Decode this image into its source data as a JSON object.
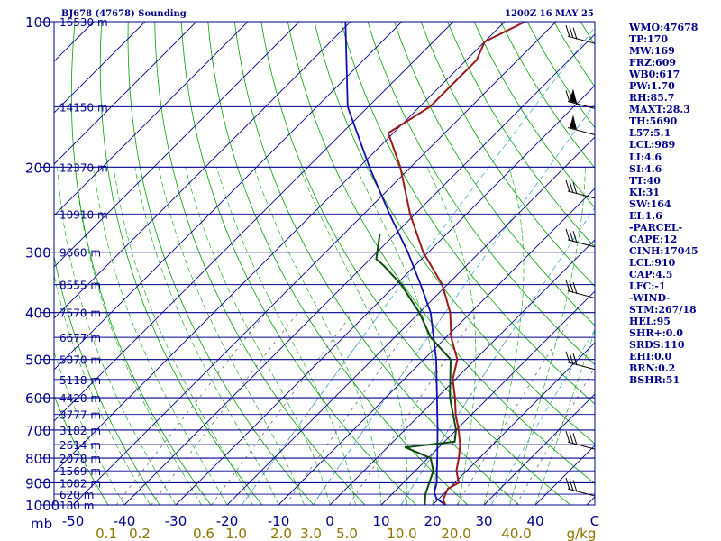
{
  "header": {
    "station": "BJ678 (47678) Sounding",
    "time": "1200Z 16 MAY 25"
  },
  "indices": [
    "WMO:47678",
    "TP:170",
    "MW:169",
    "FRZ:609",
    "WB0:617",
    "PW:1.70",
    "RH:85.7",
    "MAXT:28.3",
    "TH:5690",
    "L57:5.1",
    "LCL:989",
    "LI:4.6",
    "SI:4.6",
    "TT:40",
    "KI:31",
    "SW:164",
    "EI:1.6",
    "-PARCEL-",
    "CAPE:12",
    "CINH:17045",
    "LCL:910",
    "CAP:4.5",
    "LFC:-1",
    "-WIND-",
    "STM:267/18",
    "HEL:95",
    "SHR+:0.0",
    "SRDS:110",
    "EHI:0.0",
    "BRN:0.2",
    "BSHR:51"
  ],
  "colors": {
    "isobar": "#00008b",
    "isotherm": "#00008b",
    "dry_adiabat": "#00a000",
    "moist_adiabat": "#00a000",
    "mixing_ratio": "#555555",
    "dewpoint_isopleth": "#3fa9d8",
    "temperature": "#9b1b1b",
    "dewpoint": "#0b4a0b",
    "parcel": "#1010b0",
    "axis_text": "#00008b",
    "mixing_text": "#8b7500"
  },
  "chart_data": {
    "type": "line",
    "diagram": "skew-T log-p",
    "title": "BJ678 (47678) Sounding",
    "subtitle": "1200Z 16 MAY 25",
    "xlabel": "",
    "ylabel": "mb",
    "x_unit_label": "C",
    "mixing_unit_label": "g/kg",
    "xlim": [
      -50,
      50
    ],
    "ylim": [
      1000,
      100
    ],
    "pressure_ticks": [
      100,
      200,
      300,
      400,
      500,
      600,
      700,
      800,
      900,
      1000
    ],
    "temperature_ticks": [
      "-50",
      "-40",
      "-30",
      "-20",
      "-10",
      "0",
      "10",
      "20",
      "30",
      "40"
    ],
    "mixing_ratio_ticks": [
      "0.1",
      "0.2",
      "0.6",
      "1.0",
      "2.0",
      "3.0",
      "5.0",
      "10.0",
      "20.0",
      "40.0"
    ],
    "height_ticks": [
      {
        "p": 100,
        "label": "16530 m"
      },
      {
        "p": 150,
        "label": "14150 m"
      },
      {
        "p": 200,
        "label": "12370 m"
      },
      {
        "p": 250,
        "label": "10910 m"
      },
      {
        "p": 300,
        "label": "9660 m"
      },
      {
        "p": 350,
        "label": "8555 m"
      },
      {
        "p": 400,
        "label": "7570 m"
      },
      {
        "p": 450,
        "label": "6677 m"
      },
      {
        "p": 500,
        "label": "5870 m"
      },
      {
        "p": 550,
        "label": "5118 m"
      },
      {
        "p": 600,
        "label": "4420 m"
      },
      {
        "p": 650,
        "label": "3777 m"
      },
      {
        "p": 700,
        "label": "3182 m"
      },
      {
        "p": 750,
        "label": "2614 m"
      },
      {
        "p": 800,
        "label": "2078 m"
      },
      {
        "p": 850,
        "label": "1569 m"
      },
      {
        "p": 900,
        "label": "1082 m"
      },
      {
        "p": 950,
        "label": "620 m"
      },
      {
        "p": 1000,
        "label": "180 m"
      }
    ],
    "series": [
      {
        "key": "temperature",
        "points": [
          {
            "p": 1000,
            "t": 22.5
          },
          {
            "p": 975,
            "t": 21.0
          },
          {
            "p": 925,
            "t": 19.8
          },
          {
            "p": 900,
            "t": 20.8
          },
          {
            "p": 850,
            "t": 18.0
          },
          {
            "p": 800,
            "t": 16.0
          },
          {
            "p": 750,
            "t": 13.6
          },
          {
            "p": 700,
            "t": 10.5
          },
          {
            "p": 650,
            "t": 6.9
          },
          {
            "p": 600,
            "t": 3.5
          },
          {
            "p": 550,
            "t": -0.5
          },
          {
            "p": 500,
            "t": -3.5
          },
          {
            "p": 450,
            "t": -9.0
          },
          {
            "p": 400,
            "t": -14.0
          },
          {
            "p": 350,
            "t": -21.0
          },
          {
            "p": 300,
            "t": -31.0
          },
          {
            "p": 250,
            "t": -41.0
          },
          {
            "p": 200,
            "t": -52.0
          },
          {
            "p": 170,
            "t": -61.0
          },
          {
            "p": 150,
            "t": -58.0
          },
          {
            "p": 120,
            "t": -58.0
          },
          {
            "p": 110,
            "t": -60.0
          },
          {
            "p": 100,
            "t": -56.0
          }
        ]
      },
      {
        "key": "dewpoint",
        "points": [
          {
            "p": 1000,
            "t": 18.5
          },
          {
            "p": 950,
            "t": 16.5
          },
          {
            "p": 850,
            "t": 13.5
          },
          {
            "p": 800,
            "t": 10.5
          },
          {
            "p": 760,
            "t": 3.5
          },
          {
            "p": 740,
            "t": 12.0
          },
          {
            "p": 700,
            "t": 10.0
          },
          {
            "p": 600,
            "t": 2.5
          },
          {
            "p": 500,
            "t": -4.8
          },
          {
            "p": 450,
            "t": -13.0
          },
          {
            "p": 400,
            "t": -20.0
          },
          {
            "p": 350,
            "t": -29.0
          },
          {
            "p": 320,
            "t": -36.0
          },
          {
            "p": 310,
            "t": -38.8
          },
          {
            "p": 275,
            "t": -43.0
          }
        ]
      },
      {
        "key": "parcel",
        "points": [
          {
            "p": 1000,
            "t": 22.5
          },
          {
            "p": 970,
            "t": 19.5
          },
          {
            "p": 940,
            "t": 17.8
          },
          {
            "p": 900,
            "t": 16.5
          },
          {
            "p": 850,
            "t": 14.2
          },
          {
            "p": 800,
            "t": 11.8
          },
          {
            "p": 700,
            "t": 6.4
          },
          {
            "p": 600,
            "t": 0.0
          },
          {
            "p": 500,
            "t": -7.6
          },
          {
            "p": 400,
            "t": -17.8
          },
          {
            "p": 350,
            "t": -25.2
          },
          {
            "p": 300,
            "t": -34.0
          },
          {
            "p": 250,
            "t": -45.0
          },
          {
            "p": 200,
            "t": -58.0
          },
          {
            "p": 150,
            "t": -74.0
          },
          {
            "p": 100,
            "t": -91.0
          }
        ]
      }
    ],
    "grid": true,
    "wind_barbs": true
  }
}
